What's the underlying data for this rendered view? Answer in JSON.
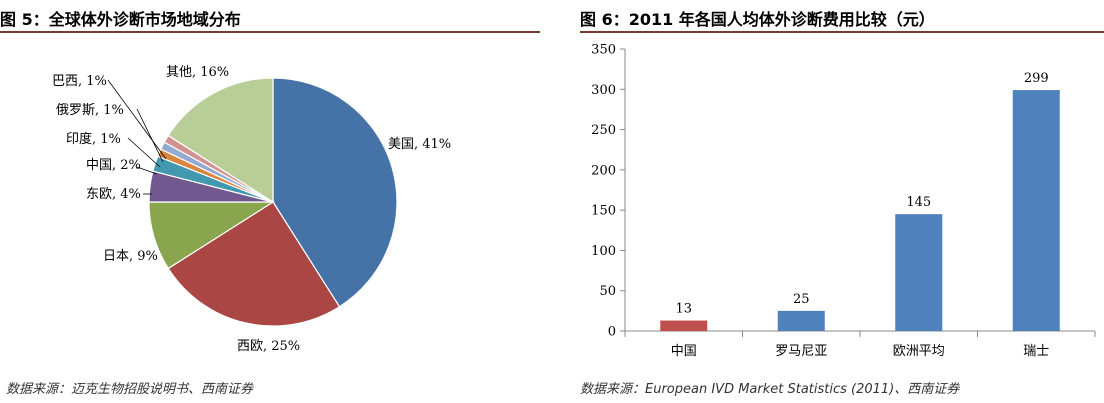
{
  "figure5": {
    "title": "图 5：全球体外诊断市场地域分布",
    "source": "数据来源：迈克生物招股说明书、西南证券"
  },
  "figure6": {
    "title": "图 6：2011 年各国人均体外诊断费用比较（元）",
    "source": "数据来源：European IVD Market Statistics (2011)、西南证券"
  },
  "chart_data": [
    {
      "type": "pie",
      "title": "",
      "slices": [
        {
          "label": "美国, 41%",
          "value": 41,
          "color": "#4572a7"
        },
        {
          "label": "西欧, 25%",
          "value": 25,
          "color": "#aa4643"
        },
        {
          "label": "日本, 9%",
          "value": 9,
          "color": "#89a54e"
        },
        {
          "label": "东欧, 4%",
          "value": 4,
          "color": "#71588f"
        },
        {
          "label": "中国, 2%",
          "value": 2,
          "color": "#4198af"
        },
        {
          "label": "印度, 1%",
          "value": 1,
          "color": "#db843d"
        },
        {
          "label": "俄罗斯, 1%",
          "value": 1,
          "color": "#93a9cf"
        },
        {
          "label": "巴西, 1%",
          "value": 1,
          "color": "#d19392"
        },
        {
          "label": "其他, 16%",
          "value": 16,
          "color": "#b9cd96"
        }
      ]
    },
    {
      "type": "bar",
      "title": "",
      "categories": [
        "中国",
        "罗马尼亚",
        "欧洲平均",
        "瑞士"
      ],
      "values": [
        13,
        25,
        145,
        299
      ],
      "data_labels": [
        "13",
        "25",
        "145",
        "299"
      ],
      "colors": [
        "#c0504d",
        "#4f81bd",
        "#4f81bd",
        "#4f81bd"
      ],
      "ylim": [
        0,
        350
      ],
      "yticks": [
        0,
        50,
        100,
        150,
        200,
        250,
        300,
        350
      ],
      "grid": false
    }
  ]
}
